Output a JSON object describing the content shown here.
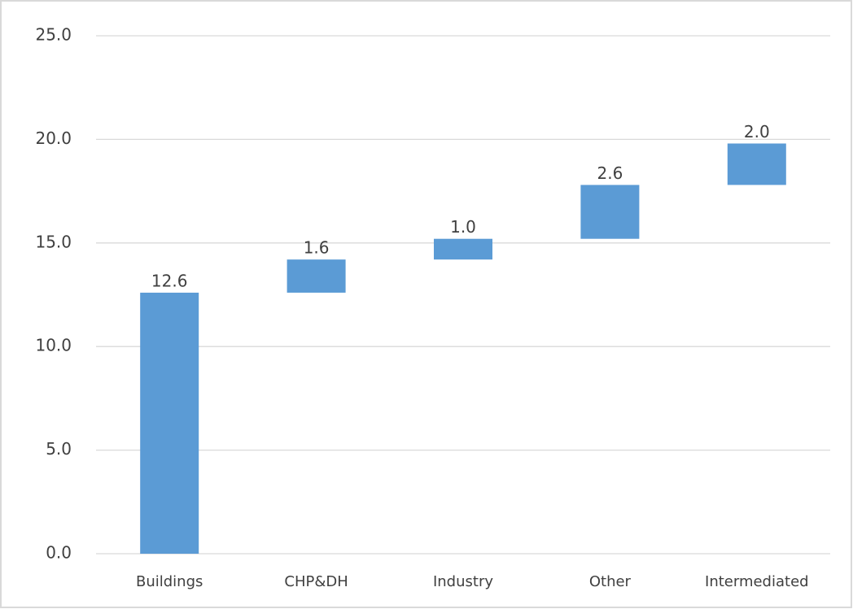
{
  "chart_data": {
    "type": "waterfall",
    "categories": [
      "Buildings",
      "CHP&DH",
      "Industry",
      "Other",
      "Intermediated"
    ],
    "values": [
      12.6,
      1.6,
      1.0,
      2.6,
      2.0
    ],
    "value_labels": [
      "12.6",
      "1.6",
      "1.0",
      "2.6",
      "2.0"
    ],
    "color": "#5b9bd5",
    "ylim": [
      0,
      25
    ],
    "yticks": [
      {
        "value": 0,
        "label": "0.0"
      },
      {
        "value": 5,
        "label": "5.0"
      },
      {
        "value": 10,
        "label": "10.0"
      },
      {
        "value": 15,
        "label": "15.0"
      },
      {
        "value": 20,
        "label": "20.0"
      },
      {
        "value": 25,
        "label": "25.0"
      }
    ],
    "grid": true
  }
}
